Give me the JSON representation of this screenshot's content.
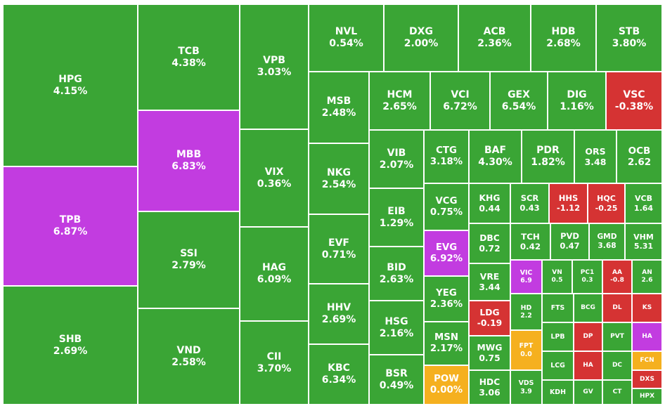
{
  "colors": {
    "up": "#3aa535",
    "down": "#d53333",
    "ceiling": "#c23ce0",
    "unchanged": "#f5b01f"
  },
  "chart_data": {
    "type": "treemap",
    "title": "",
    "tiles": [
      {
        "symbol": "HPG",
        "change": "4.15%",
        "status": "up"
      },
      {
        "symbol": "TPB",
        "change": "6.87%",
        "status": "ceiling"
      },
      {
        "symbol": "SHB",
        "change": "2.69%",
        "status": "up"
      },
      {
        "symbol": "TCB",
        "change": "4.38%",
        "status": "up"
      },
      {
        "symbol": "MBB",
        "change": "6.83%",
        "status": "ceiling"
      },
      {
        "symbol": "SSI",
        "change": "2.79%",
        "status": "up"
      },
      {
        "symbol": "VND",
        "change": "2.58%",
        "status": "up"
      },
      {
        "symbol": "VPB",
        "change": "3.03%",
        "status": "up"
      },
      {
        "symbol": "VIX",
        "change": "0.36%",
        "status": "up"
      },
      {
        "symbol": "HAG",
        "change": "6.09%",
        "status": "up"
      },
      {
        "symbol": "CII",
        "change": "3.70%",
        "status": "up"
      },
      {
        "symbol": "NVL",
        "change": "0.54%",
        "status": "up"
      },
      {
        "symbol": "DXG",
        "change": "2.00%",
        "status": "up"
      },
      {
        "symbol": "ACB",
        "change": "2.36%",
        "status": "up"
      },
      {
        "symbol": "HDB",
        "change": "2.68%",
        "status": "up"
      },
      {
        "symbol": "STB",
        "change": "3.80%",
        "status": "up"
      },
      {
        "symbol": "MSB",
        "change": "2.48%",
        "status": "up"
      },
      {
        "symbol": "NKG",
        "change": "2.54%",
        "status": "up"
      },
      {
        "symbol": "EVF",
        "change": "0.71%",
        "status": "up"
      },
      {
        "symbol": "HHV",
        "change": "2.69%",
        "status": "up"
      },
      {
        "symbol": "KBC",
        "change": "6.34%",
        "status": "up"
      },
      {
        "symbol": "HCM",
        "change": "2.65%",
        "status": "up"
      },
      {
        "symbol": "VCI",
        "change": "6.72%",
        "status": "up"
      },
      {
        "symbol": "GEX",
        "change": "6.54%",
        "status": "up"
      },
      {
        "symbol": "DIG",
        "change": "1.16%",
        "status": "up"
      },
      {
        "symbol": "VSC",
        "change": "-0.38%",
        "status": "down"
      },
      {
        "symbol": "VIB",
        "change": "2.07%",
        "status": "up"
      },
      {
        "symbol": "EIB",
        "change": "1.29%",
        "status": "up"
      },
      {
        "symbol": "BID",
        "change": "2.63%",
        "status": "up"
      },
      {
        "symbol": "HSG",
        "change": "2.16%",
        "status": "up"
      },
      {
        "symbol": "BSR",
        "change": "0.49%",
        "status": "up"
      },
      {
        "symbol": "CTG",
        "change": "3.18%",
        "status": "up"
      },
      {
        "symbol": "BAF",
        "change": "4.30%",
        "status": "up"
      },
      {
        "symbol": "PDR",
        "change": "1.82%",
        "status": "up"
      },
      {
        "symbol": "ORS",
        "change": "3.48",
        "status": "up"
      },
      {
        "symbol": "OCB",
        "change": "2.62",
        "status": "up"
      },
      {
        "symbol": "VCG",
        "change": "0.75%",
        "status": "up"
      },
      {
        "symbol": "EVG",
        "change": "6.92%",
        "status": "ceiling"
      },
      {
        "symbol": "YEG",
        "change": "2.36%",
        "status": "up"
      },
      {
        "symbol": "MSN",
        "change": "2.17%",
        "status": "up"
      },
      {
        "symbol": "POW",
        "change": "0.00%",
        "status": "unchanged"
      },
      {
        "symbol": "KHG",
        "change": "0.44",
        "status": "up"
      },
      {
        "symbol": "SCR",
        "change": "0.43",
        "status": "up"
      },
      {
        "symbol": "HHS",
        "change": "-1.12",
        "status": "down"
      },
      {
        "symbol": "HQC",
        "change": "-0.25",
        "status": "down"
      },
      {
        "symbol": "VCB",
        "change": "1.64",
        "status": "up"
      },
      {
        "symbol": "DBC",
        "change": "0.72",
        "status": "up"
      },
      {
        "symbol": "TCH",
        "change": "0.42",
        "status": "up"
      },
      {
        "symbol": "PVD",
        "change": "0.47",
        "status": "up"
      },
      {
        "symbol": "GMD",
        "change": "3.68",
        "status": "up"
      },
      {
        "symbol": "VHM",
        "change": "5.31",
        "status": "up"
      },
      {
        "symbol": "VRE",
        "change": "3.44",
        "status": "up"
      },
      {
        "symbol": "VIC",
        "change": "6.9",
        "status": "ceiling"
      },
      {
        "symbol": "VN",
        "change": "0.5",
        "status": "up"
      },
      {
        "symbol": "PC1",
        "change": "0.3",
        "status": "up"
      },
      {
        "symbol": "AA",
        "change": "-0.8",
        "status": "down"
      },
      {
        "symbol": "AN",
        "change": "2.6",
        "status": "up"
      },
      {
        "symbol": "LDG",
        "change": "-0.19",
        "status": "down"
      },
      {
        "symbol": "HD",
        "change": "2.2",
        "status": "up"
      },
      {
        "symbol": "FTS",
        "change": "",
        "status": "up"
      },
      {
        "symbol": "BCG",
        "change": "",
        "status": "up"
      },
      {
        "symbol": "DL",
        "change": "",
        "status": "down"
      },
      {
        "symbol": "KS",
        "change": "",
        "status": "down"
      },
      {
        "symbol": "MWG",
        "change": "0.75",
        "status": "up"
      },
      {
        "symbol": "FPT",
        "change": "0.0",
        "status": "unchanged"
      },
      {
        "symbol": "LPB",
        "change": "",
        "status": "up"
      },
      {
        "symbol": "DP",
        "change": "",
        "status": "down"
      },
      {
        "symbol": "PVT",
        "change": "",
        "status": "up"
      },
      {
        "symbol": "HA",
        "change": "",
        "status": "ceiling"
      },
      {
        "symbol": "LCG",
        "change": "",
        "status": "up"
      },
      {
        "symbol": "HA",
        "change": "",
        "status": "down"
      },
      {
        "symbol": "DC",
        "change": "",
        "status": "up"
      },
      {
        "symbol": "FCN",
        "change": "",
        "status": "unchanged"
      },
      {
        "symbol": "HDC",
        "change": "3.06",
        "status": "up"
      },
      {
        "symbol": "VDS",
        "change": "3.9",
        "status": "up"
      },
      {
        "symbol": "KDH",
        "change": "",
        "status": "up"
      },
      {
        "symbol": "GV",
        "change": "",
        "status": "up"
      },
      {
        "symbol": "CT",
        "change": "",
        "status": "up"
      },
      {
        "symbol": "DXS",
        "change": "",
        "status": "down"
      },
      {
        "symbol": "HPX",
        "change": "",
        "status": "up"
      }
    ]
  }
}
